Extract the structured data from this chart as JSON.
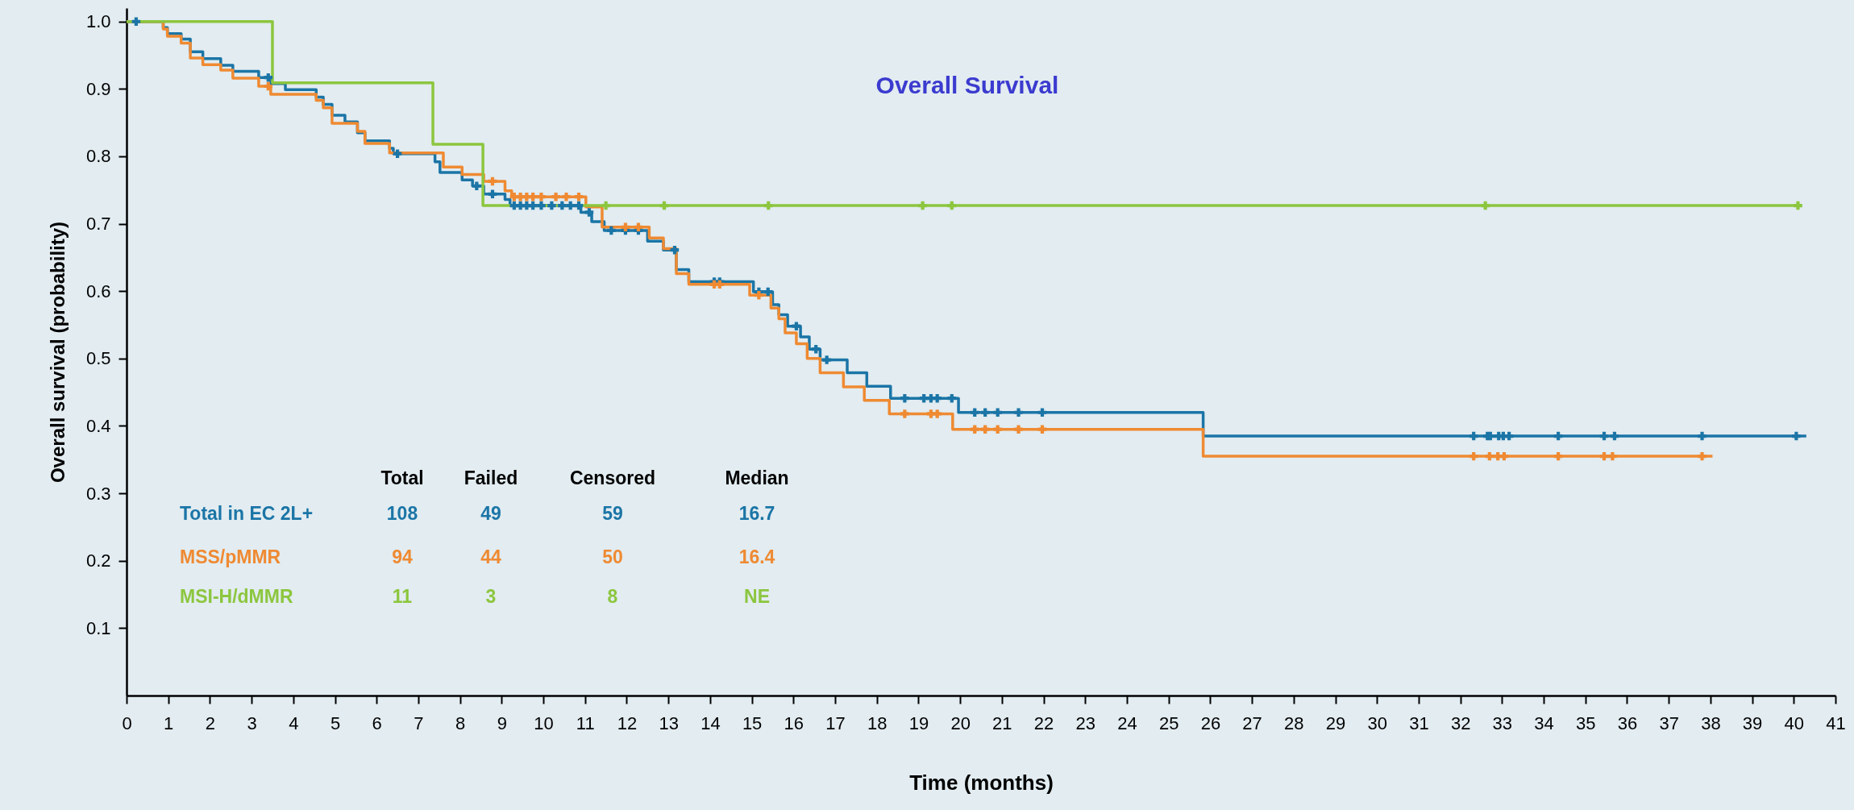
{
  "chart_data": {
    "type": "step",
    "title": "Overall Survival",
    "xlabel": "Time (months)",
    "ylabel": "Overall survival (probability)",
    "xlim": [
      0,
      41
    ],
    "xticks": [
      0,
      1,
      2,
      3,
      4,
      5,
      6,
      7,
      8,
      9,
      10,
      11,
      12,
      13,
      14,
      15,
      16,
      17,
      18,
      19,
      20,
      21,
      22,
      23,
      24,
      25,
      26,
      27,
      28,
      29,
      30,
      31,
      32,
      33,
      34,
      35,
      36,
      37,
      38,
      39,
      40,
      41
    ],
    "ylim": [
      0,
      1.02
    ],
    "yticks": [
      0.1,
      0.2,
      0.3,
      0.4,
      0.5,
      0.6,
      0.7,
      0.8,
      0.9,
      {
        "value": 1.0,
        "label": "1.0"
      }
    ],
    "grid": false,
    "legend": "bottom left",
    "line_style": "solid",
    "annotations": [
      "Total",
      "Failed",
      "Censored",
      "Median",
      "108",
      "49",
      "59",
      "16.7",
      "94",
      "44",
      "50",
      "16.4",
      "11",
      "3",
      "8",
      "NE"
    ],
    "series": [
      {
        "name": "Total in EC 2L+",
        "color": "#1b75a6",
        "x": [
          0,
          0.88,
          0.98,
          1.31,
          1.53,
          1.83,
          2.26,
          2.55,
          3.17,
          3.46,
          3.81,
          4.55,
          4.72,
          4.93,
          5.24,
          5.54,
          5.72,
          6.31,
          6.4,
          7.4,
          7.52,
          8.05,
          8.3,
          8.57,
          9.08,
          9.2,
          10.9,
          11.16,
          11.46,
          12.5,
          12.88,
          13.19,
          13.49,
          15.04,
          15.5,
          15.65,
          15.86,
          16.17,
          16.38,
          16.64,
          17.29,
          17.76,
          18.33,
          19.96,
          25.83,
          40.3
        ],
        "values": [
          1,
          0.991,
          0.982,
          0.974,
          0.955,
          0.945,
          0.935,
          0.926,
          0.917,
          0.908,
          0.899,
          0.888,
          0.877,
          0.861,
          0.851,
          0.835,
          0.823,
          0.812,
          0.804,
          0.792,
          0.776,
          0.765,
          0.756,
          0.744,
          0.736,
          0.727,
          0.717,
          0.703,
          0.69,
          0.674,
          0.661,
          0.632,
          0.614,
          0.599,
          0.58,
          0.565,
          0.548,
          0.532,
          0.514,
          0.498,
          0.479,
          0.459,
          0.441,
          0.42,
          0.385,
          0.385
        ]
      },
      {
        "name": "MSS/pMMR",
        "color": "#ef8a32",
        "x": [
          0,
          0.88,
          0.98,
          1.31,
          1.53,
          1.83,
          2.26,
          2.55,
          3.17,
          3.46,
          4.55,
          4.72,
          4.93,
          5.54,
          5.72,
          6.31,
          7.6,
          8.05,
          8.57,
          9.08,
          9.24,
          11.02,
          11.41,
          12.54,
          12.88,
          13.19,
          13.49,
          14.95,
          15.46,
          15.65,
          15.8,
          16.07,
          16.33,
          16.64,
          17.2,
          17.7,
          18.3,
          19.82,
          25.83,
          38.05
        ],
        "values": [
          1,
          0.989,
          0.978,
          0.968,
          0.946,
          0.936,
          0.928,
          0.916,
          0.904,
          0.892,
          0.883,
          0.872,
          0.849,
          0.837,
          0.819,
          0.805,
          0.784,
          0.773,
          0.763,
          0.749,
          0.74,
          0.725,
          0.695,
          0.679,
          0.663,
          0.626,
          0.61,
          0.594,
          0.575,
          0.559,
          0.538,
          0.522,
          0.5,
          0.479,
          0.458,
          0.438,
          0.418,
          0.395,
          0.355,
          0.355
        ]
      },
      {
        "name": "MSI-H/dMMR",
        "color": "#8cc63e",
        "x": [
          0,
          3.5,
          7.35,
          8.55,
          40.2
        ],
        "values": [
          1,
          0.909,
          0.818,
          0.727,
          0.727
        ]
      },
      {
        "type": "scatter",
        "marker": "cross",
        "color": "#1b75a6",
        "x": [
          0.23,
          3.4,
          6.5,
          8.4,
          8.78,
          9.3,
          9.45,
          9.6,
          9.75,
          9.95,
          10.2,
          10.45,
          10.65,
          10.85,
          11.1,
          11.63,
          11.97,
          12.28,
          13.15,
          14.1,
          14.23,
          15.17,
          15.39,
          16.07,
          16.54,
          16.8,
          18.67,
          19.13,
          19.3,
          19.45,
          19.8,
          20.35,
          20.6,
          20.9,
          21.4,
          21.97,
          32.32,
          32.65,
          32.72,
          32.92,
          33.03,
          33.17,
          34.35,
          35.45,
          35.7,
          37.8,
          40.06
        ],
        "values": [
          1,
          0.917,
          0.804,
          0.756,
          0.744,
          0.727,
          0.727,
          0.727,
          0.727,
          0.727,
          0.727,
          0.727,
          0.727,
          0.727,
          0.717,
          0.69,
          0.69,
          0.69,
          0.661,
          0.614,
          0.614,
          0.599,
          0.599,
          0.548,
          0.514,
          0.498,
          0.441,
          0.441,
          0.441,
          0.441,
          0.441,
          0.42,
          0.42,
          0.42,
          0.42,
          0.42,
          0.385,
          0.385,
          0.385,
          0.385,
          0.385,
          0.385,
          0.385,
          0.385,
          0.385,
          0.385,
          0.385
        ]
      },
      {
        "type": "scatter",
        "marker": "cross",
        "color": "#ef8a32",
        "x": [
          3.4,
          8.78,
          9.3,
          9.45,
          9.6,
          9.75,
          9.95,
          10.3,
          10.55,
          10.85,
          11.97,
          12.28,
          14.1,
          14.23,
          15.17,
          18.67,
          19.3,
          19.45,
          20.35,
          20.6,
          20.9,
          21.4,
          21.97,
          32.32,
          32.7,
          32.9,
          33.05,
          34.35,
          35.45,
          35.65,
          37.8
        ],
        "values": [
          0.904,
          0.763,
          0.74,
          0.74,
          0.74,
          0.74,
          0.74,
          0.74,
          0.74,
          0.74,
          0.695,
          0.695,
          0.61,
          0.61,
          0.594,
          0.418,
          0.418,
          0.418,
          0.395,
          0.395,
          0.395,
          0.395,
          0.395,
          0.355,
          0.355,
          0.355,
          0.355,
          0.355,
          0.355,
          0.355,
          0.355
        ]
      },
      {
        "type": "scatter",
        "marker": "cross",
        "color": "#8cc63e",
        "x": [
          11.5,
          12.9,
          15.4,
          19.1,
          19.8,
          32.6,
          40.1
        ],
        "values": [
          0.727,
          0.727,
          0.727,
          0.727,
          0.727,
          0.727,
          0.727
        ]
      }
    ]
  }
}
